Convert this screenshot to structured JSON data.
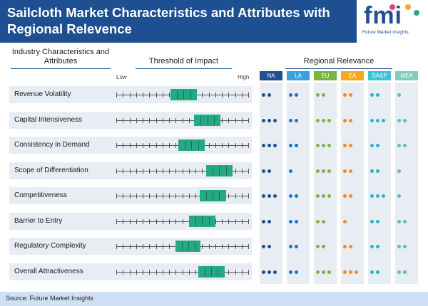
{
  "title": "Sailcloth Market Characteristics and Attributes with Regional Relevence",
  "logo": {
    "mark": "fmi",
    "tagline": "Future Market Insights",
    "dot_colors": [
      "#e83e8c",
      "#f7a823",
      "#25a983",
      "#1d4f91"
    ]
  },
  "headers": {
    "characteristics": "Industry Characteristics and Attributes",
    "threshold": "Threshold of Impact",
    "regional": "Regional Relevance",
    "low": "Low",
    "high": "High"
  },
  "regions": [
    {
      "code": "NA",
      "color": "#1d4f91",
      "dot_color": "#1d4f91"
    },
    {
      "code": "LA",
      "color": "#3aa0e0",
      "dot_color": "#1d74c5"
    },
    {
      "code": "EU",
      "color": "#7cb342",
      "dot_color": "#7cb342"
    },
    {
      "code": "EA",
      "color": "#f7a823",
      "dot_color": "#f08a24"
    },
    {
      "code": "SA&P",
      "color": "#3dc1d3",
      "dot_color": "#2bb3c7"
    },
    {
      "code": "MEA",
      "color": "#7fcfb8",
      "dot_color": "#5fbfa6"
    }
  ],
  "rows": [
    {
      "label": "Revenue Volatility",
      "impact_start": 0.41,
      "impact_end": 0.61,
      "relevance": [
        2,
        2,
        2,
        2,
        2,
        1
      ]
    },
    {
      "label": "Capital Intensiveness",
      "impact_start": 0.59,
      "impact_end": 0.79,
      "relevance": [
        3,
        2,
        3,
        2,
        3,
        2
      ]
    },
    {
      "label": "Consistency in Demand",
      "impact_start": 0.47,
      "impact_end": 0.67,
      "relevance": [
        3,
        2,
        3,
        2,
        2,
        2
      ]
    },
    {
      "label": "Scope of Differentiation",
      "impact_start": 0.68,
      "impact_end": 0.88,
      "relevance": [
        2,
        1,
        3,
        2,
        2,
        1
      ]
    },
    {
      "label": "Competitiveness",
      "impact_start": 0.63,
      "impact_end": 0.83,
      "relevance": [
        3,
        2,
        3,
        2,
        3,
        1
      ]
    },
    {
      "label": "Barrier to Entry",
      "impact_start": 0.55,
      "impact_end": 0.75,
      "relevance": [
        2,
        2,
        2,
        1,
        2,
        2
      ]
    },
    {
      "label": "Regulatory Complexity",
      "impact_start": 0.45,
      "impact_end": 0.64,
      "relevance": [
        2,
        2,
        2,
        2,
        2,
        2
      ]
    },
    {
      "label": "Overall Attractiveness",
      "impact_start": 0.62,
      "impact_end": 0.82,
      "relevance": [
        3,
        2,
        3,
        3,
        2,
        2
      ]
    }
  ],
  "footer": "Source: Future Market Insights"
}
